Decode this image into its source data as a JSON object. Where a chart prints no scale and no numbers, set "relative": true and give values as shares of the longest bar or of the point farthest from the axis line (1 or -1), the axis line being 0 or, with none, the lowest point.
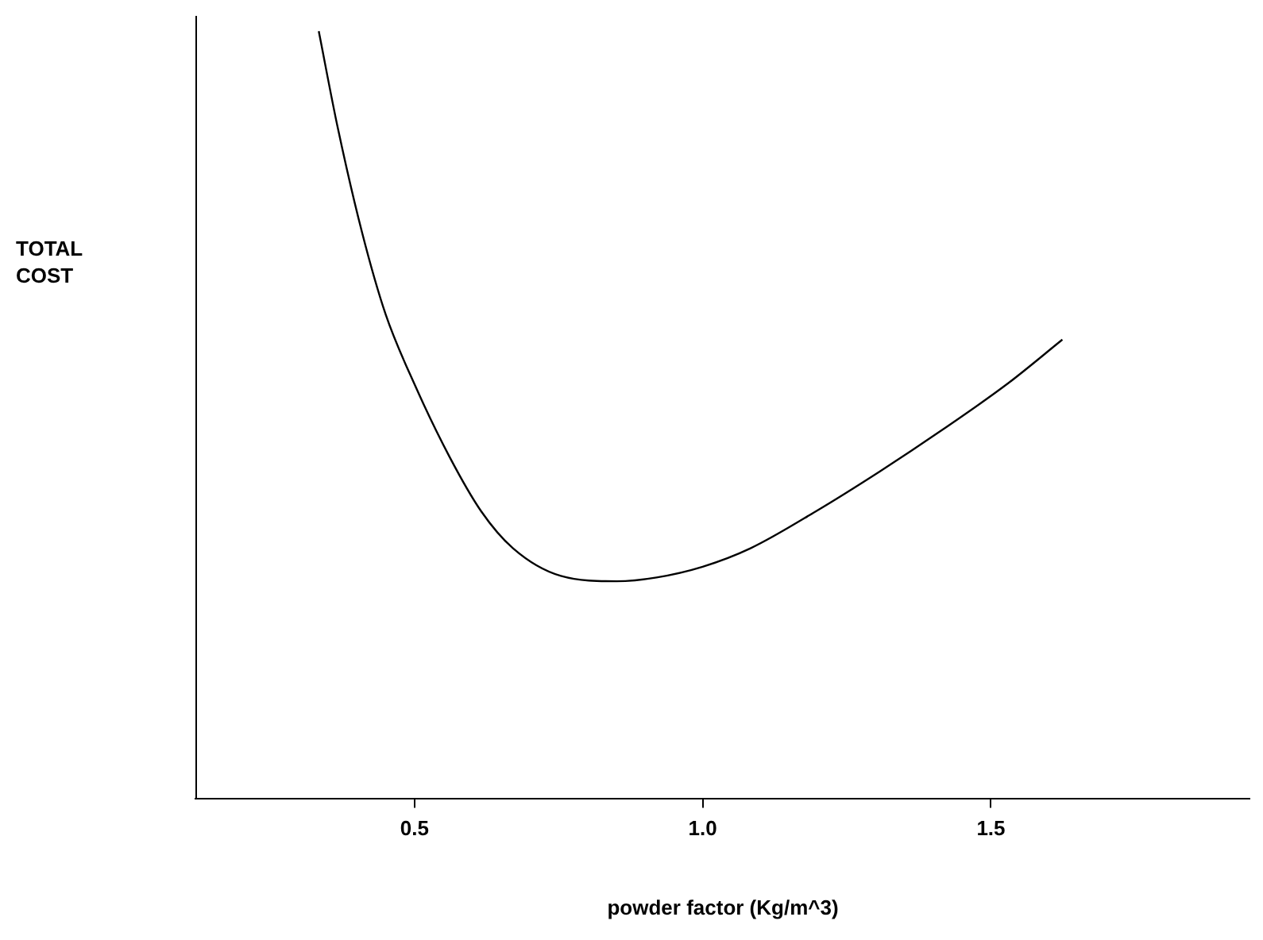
{
  "chart_data": {
    "type": "line",
    "relative": true,
    "xlabel": "powder factor (Kg/m^3)",
    "annotations": [
      "TOTAL COST"
    ],
    "xlim": [
      0.12,
      1.95
    ],
    "xticks": [
      {
        "value": 0.5,
        "label": "0.5"
      },
      {
        "value": 1,
        "label": "1.0"
      },
      {
        "value": 1.5,
        "label": "1.5"
      }
    ],
    "grid": false,
    "legend": false,
    "marker": "none",
    "line_style": "solid",
    "series": [
      {
        "color": "#000000",
        "x": [
          0.334,
          0.367,
          0.409,
          0.45,
          0.5,
          0.561,
          0.616,
          0.671,
          0.754,
          0.851,
          0.92,
          1.0,
          1.083,
          1.196,
          1.307,
          1.417,
          1.528,
          1.624
        ],
        "values": [
          1.0,
          0.874,
          0.738,
          0.631,
          0.54,
          0.445,
          0.374,
          0.326,
          0.29,
          0.283,
          0.288,
          0.302,
          0.326,
          0.374,
          0.426,
          0.481,
          0.54,
          0.598
        ]
      }
    ]
  }
}
